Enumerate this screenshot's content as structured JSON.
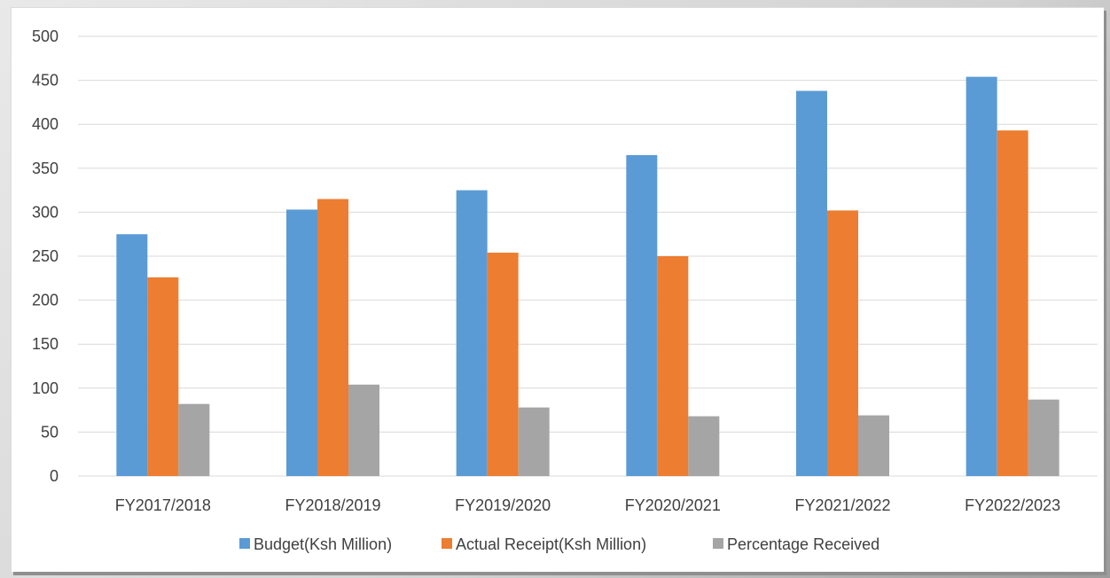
{
  "chart_data": {
    "type": "bar",
    "categories": [
      "FY2017/2018",
      "FY2018/2019",
      "FY2019/2020",
      "FY2020/2021",
      "FY2021/2022",
      "FY2022/2023"
    ],
    "series": [
      {
        "name": "Budget(Ksh Million)",
        "color": "#5B9BD5",
        "values": [
          275,
          303,
          325,
          365,
          438,
          454
        ]
      },
      {
        "name": "Actual  Receipt(Ksh Million)",
        "color": "#ED7D31",
        "values": [
          226,
          315,
          254,
          250,
          302,
          393
        ]
      },
      {
        "name": "Percentage Received",
        "color": "#A5A5A5",
        "values": [
          82,
          104,
          78,
          68,
          69,
          87
        ]
      }
    ],
    "ylim": [
      0,
      500
    ],
    "yticks": [
      "0",
      "50",
      "100",
      "150",
      "200",
      "250",
      "300",
      "350",
      "400",
      "450",
      "500"
    ],
    "grid": true,
    "legend_position": "bottom",
    "gridline_color": "#D9D9D9"
  }
}
